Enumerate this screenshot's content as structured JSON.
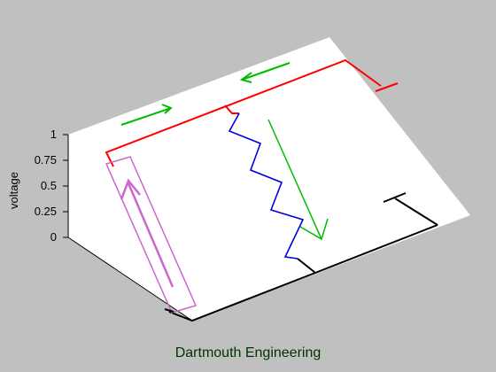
{
  "axis": {
    "ylabel": "voltage",
    "ticks": [
      "1",
      "0.75",
      "0.5",
      "0.25",
      "0"
    ]
  },
  "footer": {
    "text": "Dartmouth Engineering"
  },
  "colors": {
    "background": "#c0c0c0",
    "plane": "#ffffff",
    "wire_high": "#ff0000",
    "resistor": "#0000dd",
    "battery": "#cc66cc",
    "current_arrow": "#00bb00",
    "ground_wire": "#000000",
    "footer_text": "#003300"
  }
}
